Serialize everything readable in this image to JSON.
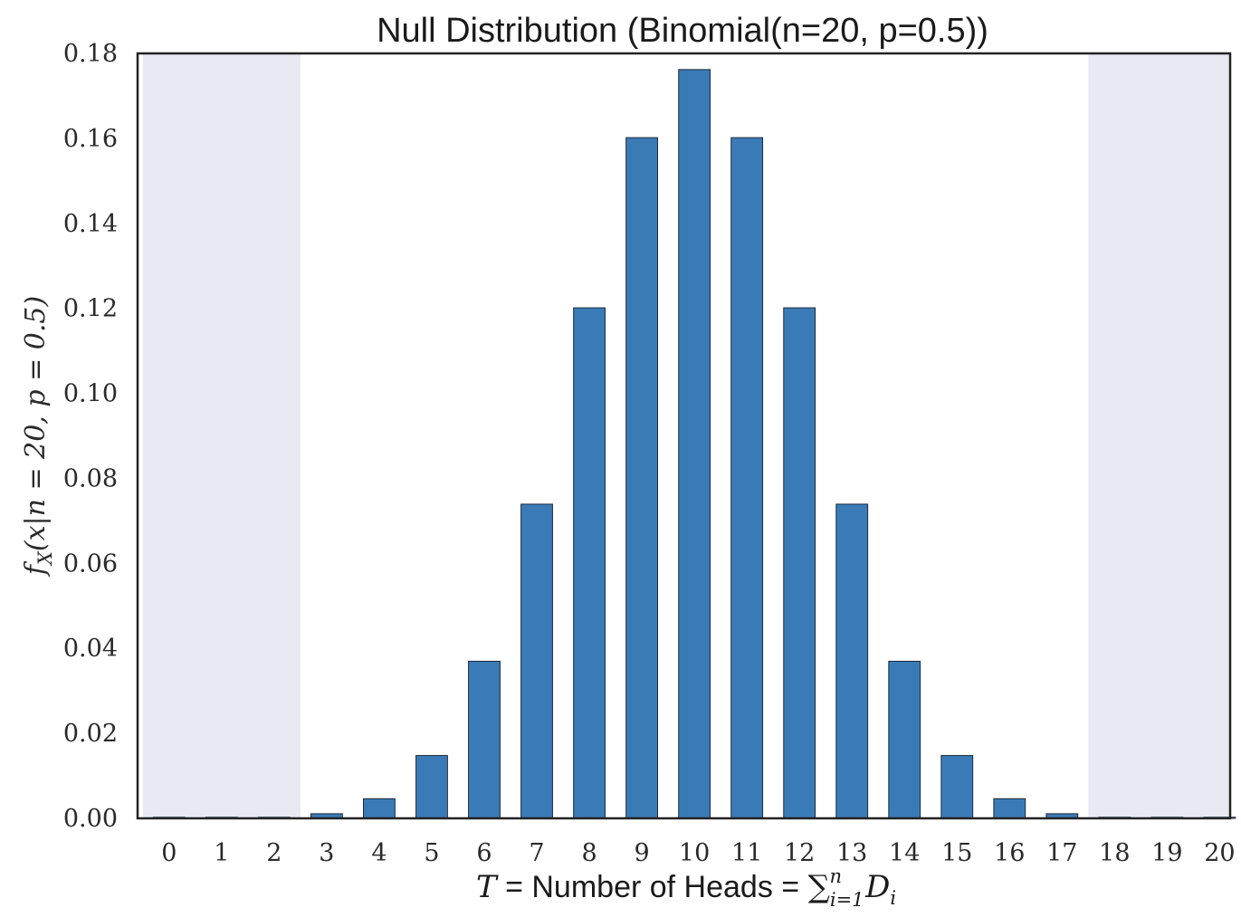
{
  "chart_data": {
    "type": "bar",
    "title": "Null Distribution (Binomial(n=20, p=0.5))",
    "xlabel_parts": {
      "lead": "T",
      "text": " = Number of Heads = ",
      "sum": "∑",
      "sub": "i=1",
      "sup": "n",
      "term": "D",
      "term_sub": "i"
    },
    "ylabel": "f_X(x | n = 20, p = 0.5)",
    "ylabel_parts": {
      "f": "f",
      "sub": "X",
      "rest": "(x|n = 20, p = 0.5)"
    },
    "categories": [
      "0",
      "1",
      "2",
      "3",
      "4",
      "5",
      "6",
      "7",
      "8",
      "9",
      "10",
      "11",
      "12",
      "13",
      "14",
      "15",
      "16",
      "17",
      "18",
      "19",
      "20"
    ],
    "values": [
      1e-06,
      1.9e-05,
      0.000181,
      0.001087,
      0.004621,
      0.014786,
      0.036964,
      0.073929,
      0.120134,
      0.160179,
      0.176197,
      0.160179,
      0.120134,
      0.073929,
      0.036964,
      0.014786,
      0.004621,
      0.001087,
      0.000181,
      1.9e-05,
      1e-06
    ],
    "ylim": [
      0,
      0.18
    ],
    "yticks": [
      "0.00",
      "0.02",
      "0.04",
      "0.06",
      "0.08",
      "0.10",
      "0.12",
      "0.14",
      "0.16",
      "0.18"
    ],
    "rejection_regions": [
      [
        0,
        2
      ],
      [
        18,
        20
      ]
    ],
    "grid": false,
    "colors": {
      "bar": "#3a7bb7",
      "bar_edge": "#1b2a3a",
      "shade": "#e8e9f2",
      "axis": "#222222"
    }
  }
}
